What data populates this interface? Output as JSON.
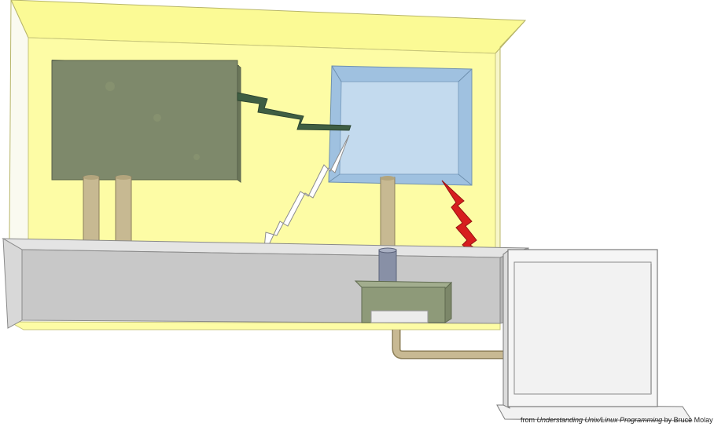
{
  "credit": {
    "prefix": "from ",
    "book_title": "Understanding Unix/Linux Programming",
    "suffix": " by Bruce Molay"
  },
  "colors": {
    "enclosure_yellow": "#fdfca5",
    "enclosure_top": "#fbfa95",
    "processor_box": "#7e896b",
    "memory_box": "#c3daee",
    "memory_frame": "#9fc1e0",
    "bus_bar": "#c8c8c8",
    "post": "#c7b992",
    "bolt_green": "#3f5e43",
    "bolt_white": "#ffffff",
    "bolt_red": "#d71e1e",
    "monitor": "#f2f2f2",
    "disk_unit": "#8e9a79",
    "cable": "#c8b993"
  },
  "icons": {
    "processor": "green-box-icon",
    "memory": "blue-frame-icon",
    "monitor": "monitor-icon",
    "disk": "disk-unit-icon",
    "signals": "lightning-bolt-icon"
  }
}
